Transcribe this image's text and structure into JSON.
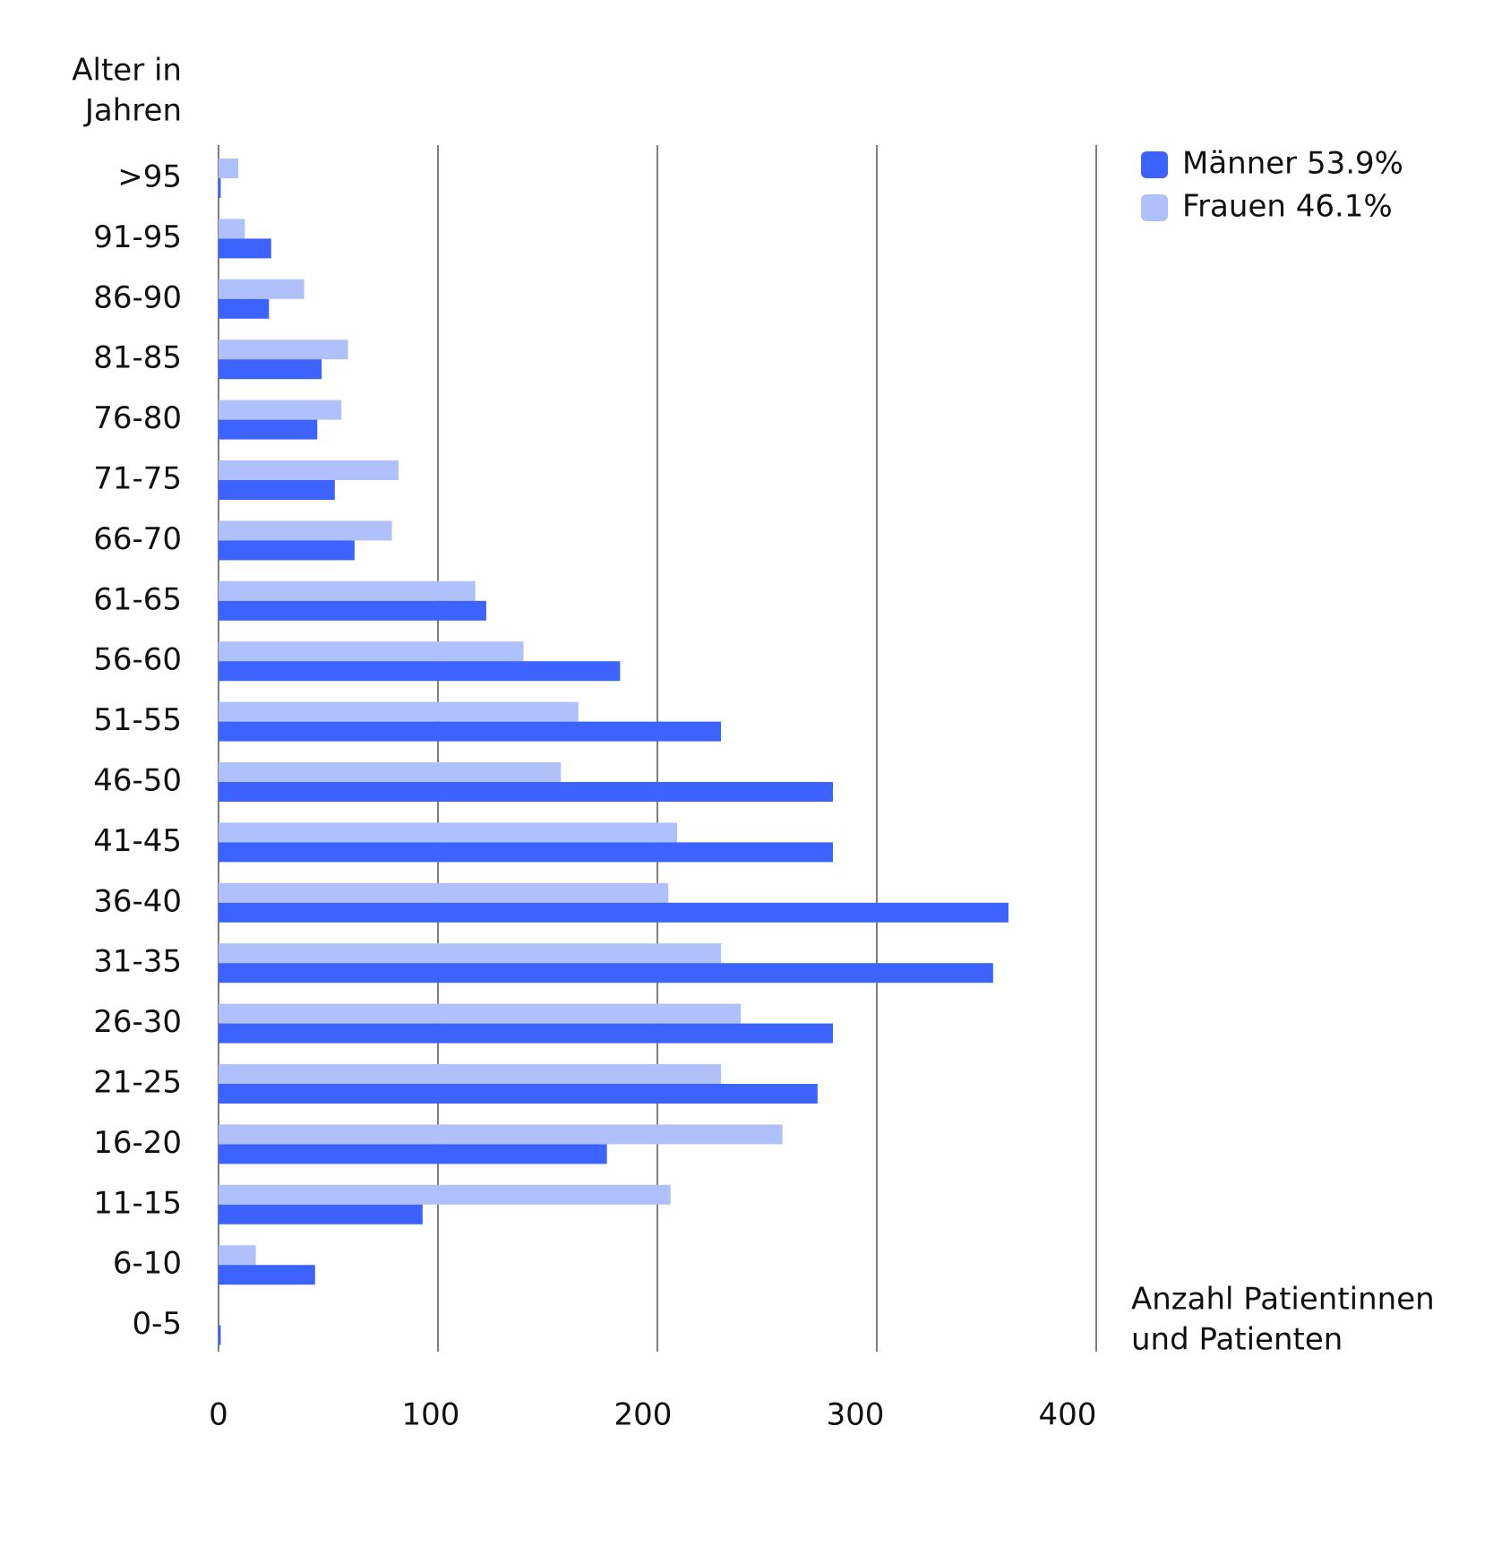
{
  "chart_data": {
    "type": "bar",
    "orientation": "horizontal",
    "y_label": [
      "Alter in",
      "Jahren"
    ],
    "x_label": [
      "Anzahl Patientinnen",
      "und Patienten"
    ],
    "categories": [
      ">95",
      "91-95",
      "86-90",
      "81-85",
      "76-80",
      "71-75",
      "66-70",
      "61-65",
      "56-60",
      "51-55",
      "46-50",
      "41-45",
      "36-40",
      "31-35",
      "26-30",
      "21-25",
      "16-20",
      "11-15",
      "6-10",
      "0-5"
    ],
    "series": [
      {
        "name": "Männer 53.9%",
        "color": "#3d63ff",
        "values": [
          1,
          24,
          23,
          47,
          45,
          53,
          62,
          122,
          183,
          229,
          280,
          280,
          360,
          353,
          280,
          273,
          177,
          93,
          44,
          1
        ]
      },
      {
        "name": "Frauen 46.1%",
        "color": "#b0c0fb",
        "values": [
          9,
          12,
          39,
          59,
          56,
          82,
          79,
          117,
          139,
          164,
          156,
          209,
          205,
          229,
          238,
          229,
          257,
          206,
          17,
          0
        ]
      }
    ],
    "xlim": [
      0,
      400
    ],
    "xticks": [
      0,
      100,
      200,
      300,
      400
    ],
    "grid": true,
    "legend": "top-right"
  }
}
